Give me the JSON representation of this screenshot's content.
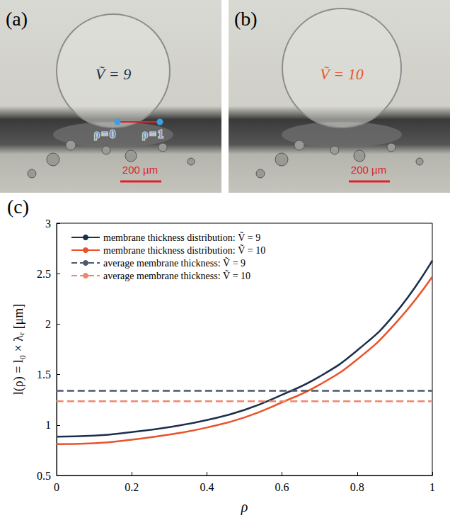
{
  "panels": [
    {
      "label": "(a)",
      "annotation": "Ṽ = 9",
      "annotation_color": "#1b2f4b",
      "scale_bar": "200 µm",
      "markers": [
        "ρ = 0",
        "ρ = 1"
      ]
    },
    {
      "label": "(b)",
      "annotation": "Ṽ = 10",
      "annotation_color": "#e8532a",
      "scale_bar": "200 µm"
    }
  ],
  "chart_data": {
    "type": "line",
    "panel_label": "(c)",
    "x_label": "ρ",
    "y_label": "l(ρ) = l₀ × λᵣ [μm]",
    "xlim": [
      0,
      1
    ],
    "xticks": [
      0,
      0.2,
      0.4,
      0.6,
      0.8,
      1
    ],
    "ylim": [
      0.5,
      3
    ],
    "yticks": [
      0.5,
      1,
      1.5,
      2,
      2.5,
      3
    ],
    "grid": false,
    "legend": "upper left",
    "series": [
      {
        "name": "membrane thickness distribution: Ṽ = 9",
        "color": "#1b2f4b",
        "line_style": "solid",
        "x": [
          0,
          0.1,
          0.2,
          0.3,
          0.4,
          0.5,
          0.6,
          0.7,
          0.8,
          0.9,
          1
        ],
        "values": [
          0.885,
          0.895,
          0.93,
          0.98,
          1.05,
          1.15,
          1.3,
          1.48,
          1.74,
          2.1,
          2.63
        ]
      },
      {
        "name": "membrane thickness distribution: Ṽ = 10",
        "color": "#e8532a",
        "line_style": "solid",
        "x": [
          0,
          0.1,
          0.2,
          0.3,
          0.4,
          0.5,
          0.6,
          0.7,
          0.8,
          0.9,
          1
        ],
        "values": [
          0.81,
          0.82,
          0.855,
          0.905,
          0.975,
          1.075,
          1.225,
          1.4,
          1.65,
          2.0,
          2.47
        ]
      },
      {
        "name": "average membrane thickness: Ṽ = 9",
        "color": "#4c5a6c",
        "line_style": "dashed",
        "x": [
          0,
          1
        ],
        "values": [
          1.34,
          1.34
        ]
      },
      {
        "name": "average membrane thickness: Ṽ = 10",
        "color": "#f0866c",
        "line_style": "dashed",
        "x": [
          0,
          1
        ],
        "values": [
          1.235,
          1.235
        ]
      }
    ]
  }
}
